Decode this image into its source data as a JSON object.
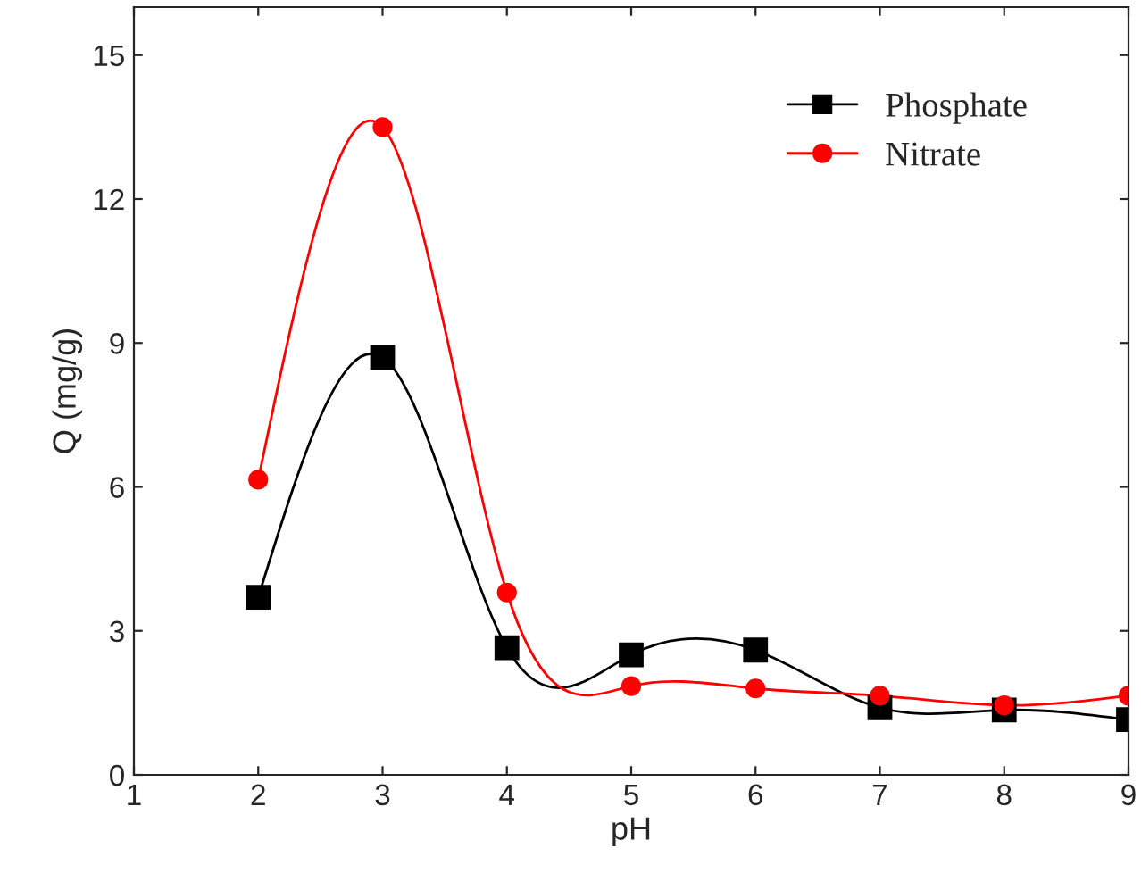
{
  "chart_data": {
    "type": "line",
    "xlabel": "pH",
    "ylabel": "Q (mg/g)",
    "x": [
      2,
      3,
      4,
      5,
      6,
      7,
      8,
      9
    ],
    "series": [
      {
        "name": "Phosphate",
        "color": "#000000",
        "marker": "square",
        "values": [
          3.7,
          8.7,
          2.65,
          2.5,
          2.6,
          1.4,
          1.35,
          1.15
        ]
      },
      {
        "name": "Nitrate",
        "color": "#ff0000",
        "marker": "circle",
        "values": [
          6.15,
          13.5,
          3.8,
          1.85,
          1.8,
          1.65,
          1.45,
          1.65
        ]
      }
    ],
    "xlim": [
      1,
      9
    ],
    "xticks": [
      1,
      2,
      3,
      4,
      5,
      6,
      7,
      8,
      9
    ],
    "ylim": [
      0,
      16
    ],
    "yticks": [
      0,
      3,
      6,
      9,
      12,
      15
    ],
    "grid": false,
    "legend": "top right",
    "line_style": "solid"
  }
}
